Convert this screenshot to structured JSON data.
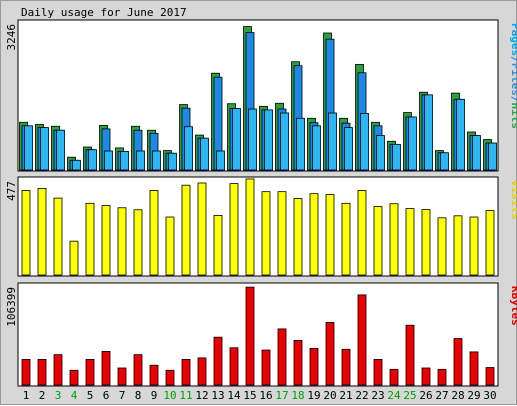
{
  "chart_data": {
    "type": "bar",
    "title": "Daily usage for June 2017",
    "categories": [
      "1",
      "2",
      "3",
      "4",
      "5",
      "6",
      "7",
      "8",
      "9",
      "10",
      "11",
      "12",
      "13",
      "14",
      "15",
      "16",
      "17",
      "18",
      "19",
      "20",
      "21",
      "22",
      "23",
      "24",
      "25",
      "26",
      "27",
      "28",
      "29",
      "30"
    ],
    "weekend_days": [
      "3",
      "4",
      "10",
      "11",
      "17",
      "18",
      "24",
      "25"
    ],
    "panels": [
      {
        "name": "hits-panel",
        "ymax_label": "3246",
        "ymax": 3246,
        "right_label_parts": [
          {
            "text": "Pages",
            "color": "#00a8e8"
          },
          {
            "text": "/",
            "color": "#0080ff"
          },
          {
            "text": "Files",
            "color": "#3a8fd0"
          },
          {
            "text": "/",
            "color": "#0080ff"
          },
          {
            "text": "Hits",
            "color": "#2ea44f"
          }
        ],
        "series": [
          {
            "name": "Hits",
            "color": "#2e9e3e",
            "values": [
              1080,
              1030,
              990,
              290,
              520,
              1010,
              500,
              990,
              900,
              440,
              1480,
              790,
              2190,
              1500,
              3246,
              1440,
              1510,
              2450,
              1170,
              3100,
              1170,
              2390,
              1080,
              650,
              1300,
              1760,
              440,
              1740,
              860,
              690
            ]
          },
          {
            "name": "Files",
            "color": "#1e88e5",
            "values": [
              1000,
              960,
              900,
              220,
              460,
              930,
              420,
              900,
              830,
              380,
              1400,
              720,
              2100,
              1390,
              3110,
              1360,
              1380,
              2360,
              1070,
              2960,
              1060,
              2200,
              1000,
              580,
              1200,
              1700,
              390,
              1600,
              780,
              610
            ]
          },
          {
            "name": "Pages",
            "color": "#29b6f6",
            "values": [
              1000,
              960,
              900,
              220,
              460,
              430,
              420,
              430,
              430,
              380,
              980,
              720,
              430,
              1390,
              1380,
              1360,
              1290,
              1170,
              1000,
              1290,
              960,
              1280,
              780,
              580,
              1200,
              1700,
              390,
              1600,
              780,
              610
            ]
          }
        ]
      },
      {
        "name": "visits-panel",
        "ymax_label": "477",
        "ymax": 477,
        "right_label_parts": [
          {
            "text": "Visits",
            "color": "#e6d200"
          }
        ],
        "series": [
          {
            "name": "Visits",
            "color": "#ffff00",
            "values": [
              420,
              430,
              382,
              168,
              356,
              345,
              334,
              324,
              420,
              288,
              446,
              457,
              296,
              454,
              477,
              414,
              414,
              380,
              404,
              400,
              356,
              420,
              340,
              354,
              330,
              325,
              284,
              294,
              288,
              320
            ]
          }
        ]
      },
      {
        "name": "kbytes-panel",
        "ymax_label": "106399",
        "ymax": 106399,
        "right_label_parts": [
          {
            "text": "KBytes",
            "color": "#e00000"
          }
        ],
        "series": [
          {
            "name": "KBytes",
            "color": "#ee0000",
            "values": [
              27800,
              27800,
              33000,
              16000,
              27800,
              36500,
              18500,
              33000,
              21500,
              16000,
              27800,
              29500,
              52000,
              40500,
              106399,
              38000,
              61000,
              48500,
              39800,
              68000,
              38800,
              98000,
              27800,
              17000,
              65000,
              18500,
              17000,
              50500,
              36000,
              19000
            ]
          }
        ]
      }
    ]
  }
}
